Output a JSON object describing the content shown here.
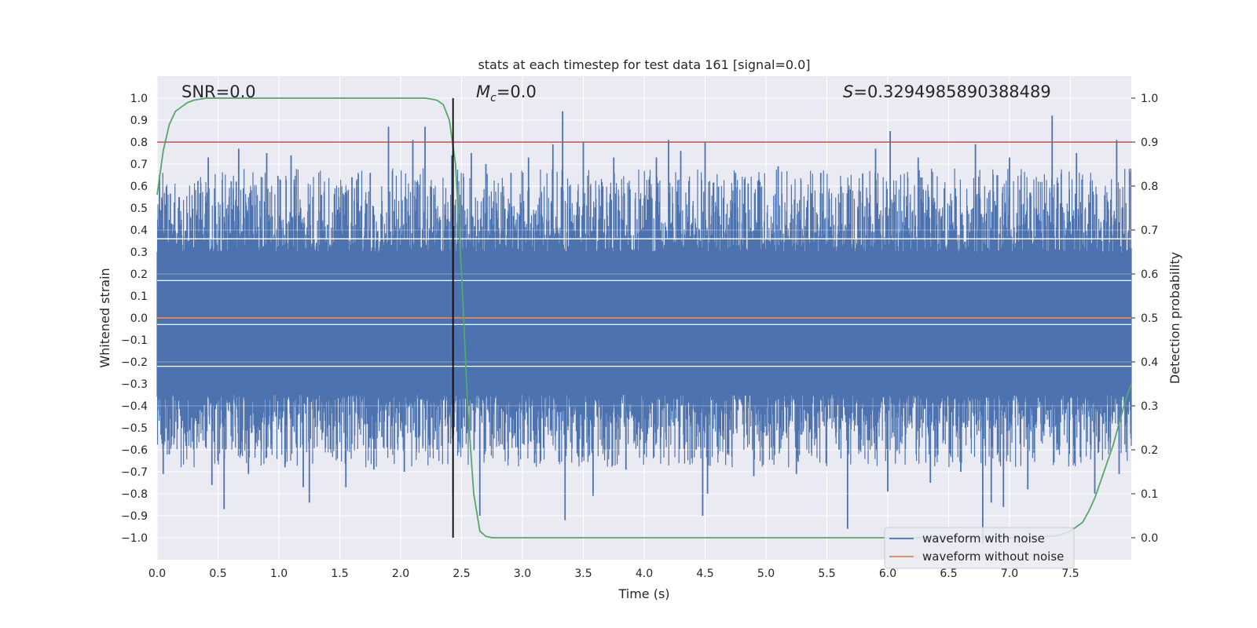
{
  "chart_data": {
    "type": "line",
    "title": "stats at each timestep for test data 161 [signal=0.0]",
    "xlabel": "Time (s)",
    "ylabel": "Whitened strain",
    "y2label": "Detection probability",
    "xlim": [
      0.0,
      8.0
    ],
    "ylim": [
      -1.1,
      1.1
    ],
    "y2lim": [
      -0.05,
      1.05
    ],
    "x_ticks": [
      0.0,
      0.5,
      1.0,
      1.5,
      2.0,
      2.5,
      3.0,
      3.5,
      4.0,
      4.5,
      5.0,
      5.5,
      6.0,
      6.5,
      7.0,
      7.5
    ],
    "x_tick_labels": [
      "0.0",
      "0.5",
      "1.0",
      "1.5",
      "2.0",
      "2.5",
      "3.0",
      "3.5",
      "4.0",
      "4.5",
      "5.0",
      "5.5",
      "6.0",
      "6.5",
      "7.0",
      "7.5"
    ],
    "y_ticks": [
      -1.0,
      -0.9,
      -0.8,
      -0.7,
      -0.6,
      -0.5,
      -0.4,
      -0.3,
      -0.2,
      -0.1,
      0.0,
      0.1,
      0.2,
      0.3,
      0.4,
      0.5,
      0.6,
      0.7,
      0.8,
      0.9,
      1.0
    ],
    "y_tick_labels": [
      "−1.0",
      "−0.9",
      "−0.8",
      "−0.7",
      "−0.6",
      "−0.5",
      "−0.4",
      "−0.3",
      "−0.2",
      "−0.1",
      "0.0",
      "0.1",
      "0.2",
      "0.3",
      "0.4",
      "0.5",
      "0.6",
      "0.7",
      "0.8",
      "0.9",
      "1.0"
    ],
    "y2_ticks": [
      0.0,
      0.1,
      0.2,
      0.3,
      0.4,
      0.5,
      0.6,
      0.7,
      0.8,
      0.9,
      1.0
    ],
    "y2_tick_labels": [
      "0.0",
      "0.1",
      "0.2",
      "0.3",
      "0.4",
      "0.5",
      "0.6",
      "0.7",
      "0.8",
      "0.9",
      "1.0"
    ],
    "annotations": {
      "snr": "SNR=0.0",
      "mc_symbol": "M",
      "mc_sub": "c",
      "mc_value": "=0.0",
      "s_symbol": "S",
      "s_value": "=0.3294985890388489"
    },
    "series": [
      {
        "name": "waveform with noise",
        "color": "#4c72b0",
        "kind": "noise",
        "band_upper": 0.3,
        "band_lower": -0.35,
        "peaks": [
          {
            "x": 0.02,
            "y": 0.65
          },
          {
            "x": 0.05,
            "y": -0.71
          },
          {
            "x": 0.1,
            "y": -0.62
          },
          {
            "x": 0.18,
            "y": 0.55
          },
          {
            "x": 0.3,
            "y": -0.6
          },
          {
            "x": 0.42,
            "y": 0.73
          },
          {
            "x": 0.45,
            "y": -0.76
          },
          {
            "x": 0.55,
            "y": -0.87
          },
          {
            "x": 0.65,
            "y": 0.62
          },
          {
            "x": 0.67,
            "y": 0.77
          },
          {
            "x": 0.75,
            "y": -0.71
          },
          {
            "x": 0.9,
            "y": 0.75
          },
          {
            "x": 1.05,
            "y": -0.68
          },
          {
            "x": 1.1,
            "y": 0.74
          },
          {
            "x": 1.2,
            "y": -0.77
          },
          {
            "x": 1.25,
            "y": -0.84
          },
          {
            "x": 1.35,
            "y": 0.56
          },
          {
            "x": 1.55,
            "y": -0.77
          },
          {
            "x": 1.6,
            "y": 0.64
          },
          {
            "x": 1.75,
            "y": 0.66
          },
          {
            "x": 1.78,
            "y": -0.69
          },
          {
            "x": 1.9,
            "y": 0.87
          },
          {
            "x": 2.03,
            "y": -0.7
          },
          {
            "x": 2.1,
            "y": 0.81
          },
          {
            "x": 2.2,
            "y": 0.87
          },
          {
            "x": 2.3,
            "y": -0.6
          },
          {
            "x": 2.42,
            "y": 0.74
          },
          {
            "x": 2.43,
            "y": -0.81
          },
          {
            "x": 2.58,
            "y": 0.75
          },
          {
            "x": 2.65,
            "y": -0.9
          },
          {
            "x": 2.7,
            "y": 0.7
          },
          {
            "x": 2.85,
            "y": -0.6
          },
          {
            "x": 3.05,
            "y": 0.73
          },
          {
            "x": 3.1,
            "y": -0.66
          },
          {
            "x": 3.25,
            "y": 0.79
          },
          {
            "x": 3.33,
            "y": 0.94
          },
          {
            "x": 3.35,
            "y": -0.92
          },
          {
            "x": 3.5,
            "y": 0.8
          },
          {
            "x": 3.58,
            "y": -0.81
          },
          {
            "x": 3.75,
            "y": 0.73
          },
          {
            "x": 3.85,
            "y": -0.69
          },
          {
            "x": 4.1,
            "y": 0.73
          },
          {
            "x": 4.2,
            "y": 0.81
          },
          {
            "x": 4.3,
            "y": 0.76
          },
          {
            "x": 4.48,
            "y": -0.9
          },
          {
            "x": 4.5,
            "y": 0.8
          },
          {
            "x": 4.52,
            "y": -0.8
          },
          {
            "x": 4.75,
            "y": 0.66
          },
          {
            "x": 4.9,
            "y": -0.72
          },
          {
            "x": 5.1,
            "y": 0.69
          },
          {
            "x": 5.25,
            "y": -0.71
          },
          {
            "x": 5.45,
            "y": 0.66
          },
          {
            "x": 5.6,
            "y": -0.6
          },
          {
            "x": 5.67,
            "y": -0.96
          },
          {
            "x": 5.9,
            "y": 0.77
          },
          {
            "x": 6.0,
            "y": -0.79
          },
          {
            "x": 6.02,
            "y": 0.85
          },
          {
            "x": 6.25,
            "y": 0.73
          },
          {
            "x": 6.35,
            "y": -0.75
          },
          {
            "x": 6.6,
            "y": -0.7
          },
          {
            "x": 6.72,
            "y": 0.79
          },
          {
            "x": 6.78,
            "y": -1.03
          },
          {
            "x": 6.85,
            "y": -0.84
          },
          {
            "x": 6.95,
            "y": -0.86
          },
          {
            "x": 7.0,
            "y": 0.73
          },
          {
            "x": 7.15,
            "y": -0.78
          },
          {
            "x": 7.35,
            "y": 0.92
          },
          {
            "x": 7.4,
            "y": -0.6
          },
          {
            "x": 7.55,
            "y": 0.75
          },
          {
            "x": 7.7,
            "y": -0.8
          },
          {
            "x": 7.88,
            "y": 0.81
          },
          {
            "x": 7.9,
            "y": -0.71
          }
        ]
      },
      {
        "name": "waveform without noise",
        "color": "#dd8452",
        "x": [
          0.0,
          8.0
        ],
        "y": [
          0.0,
          0.0
        ]
      },
      {
        "name": "detection probability",
        "axis": "right",
        "color": "#55a868",
        "x": [
          0.0,
          0.05,
          0.1,
          0.15,
          0.2,
          0.25,
          0.3,
          0.4,
          0.6,
          1.0,
          1.5,
          2.0,
          2.2,
          2.25,
          2.3,
          2.35,
          2.4,
          2.45,
          2.5,
          2.55,
          2.6,
          2.65,
          2.7,
          2.75,
          2.9,
          3.5,
          5.0,
          6.5,
          7.2,
          7.4,
          7.5,
          7.6,
          7.65,
          7.7,
          7.75,
          7.8,
          7.85,
          7.9,
          7.95,
          8.0
        ],
        "y": [
          0.78,
          0.88,
          0.94,
          0.97,
          0.98,
          0.99,
          0.995,
          1.0,
          1.0,
          1.0,
          1.0,
          1.0,
          1.0,
          0.998,
          0.995,
          0.985,
          0.95,
          0.85,
          0.6,
          0.3,
          0.1,
          0.015,
          0.003,
          0.0,
          0.0,
          0.0,
          0.0,
          0.0,
          0.0,
          0.005,
          0.015,
          0.035,
          0.06,
          0.09,
          0.13,
          0.17,
          0.21,
          0.26,
          0.31,
          0.35
        ]
      }
    ],
    "threshold": {
      "axis": "right",
      "value": 0.9,
      "color": "#c44e52"
    },
    "vertical_marker": {
      "x": 2.43,
      "color": "#000000"
    },
    "white_bands": [
      0.36,
      0.17,
      -0.03,
      -0.22
    ],
    "legend": {
      "location": "lower-right",
      "entries": [
        "waveform with noise",
        "waveform without noise"
      ]
    }
  }
}
